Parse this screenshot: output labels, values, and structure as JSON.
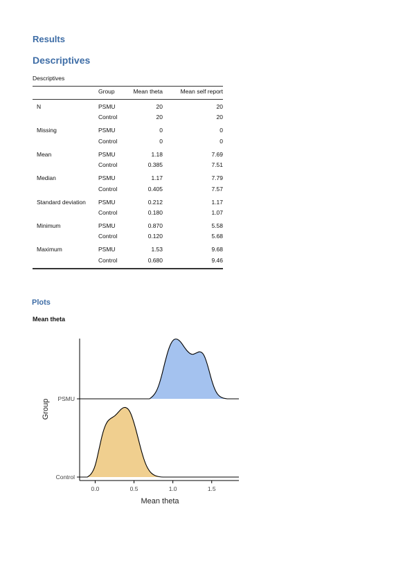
{
  "results_heading": "Results",
  "descriptives_heading": "Descriptives",
  "table": {
    "title": "Descriptives",
    "headers": [
      "",
      "Group",
      "Mean theta",
      "Mean self report"
    ],
    "rows": [
      {
        "stat": "N",
        "values": [
          [
            "PSMU",
            "20",
            "20"
          ],
          [
            "Control",
            "20",
            "20"
          ]
        ]
      },
      {
        "stat": "Missing",
        "values": [
          [
            "PSMU",
            "0",
            "0"
          ],
          [
            "Control",
            "0",
            "0"
          ]
        ]
      },
      {
        "stat": "Mean",
        "values": [
          [
            "PSMU",
            "1.18",
            "7.69"
          ],
          [
            "Control",
            "0.385",
            "7.51"
          ]
        ]
      },
      {
        "stat": "Median",
        "values": [
          [
            "PSMU",
            "1.17",
            "7.79"
          ],
          [
            "Control",
            "0.405",
            "7.57"
          ]
        ]
      },
      {
        "stat": "Standard deviation",
        "values": [
          [
            "PSMU",
            "0.212",
            "1.17"
          ],
          [
            "Control",
            "0.180",
            "1.07"
          ]
        ]
      },
      {
        "stat": "Minimum",
        "values": [
          [
            "PSMU",
            "0.870",
            "5.58"
          ],
          [
            "Control",
            "0.120",
            "5.68"
          ]
        ]
      },
      {
        "stat": "Maximum",
        "values": [
          [
            "PSMU",
            "1.53",
            "9.68"
          ],
          [
            "Control",
            "0.680",
            "9.46"
          ]
        ]
      }
    ]
  },
  "plots_heading": "Plots",
  "plot_title": "Mean theta",
  "chart_data": {
    "type": "area",
    "subtype": "ridgeline-density",
    "xlabel": "Mean theta",
    "ylabel": "Group",
    "xlim": [
      -0.2,
      1.85
    ],
    "x_ticks": [
      "0.0",
      "0.5",
      "1.0",
      "1.5"
    ],
    "x_tick_values": [
      0.0,
      0.5,
      1.0,
      1.5
    ],
    "categories": [
      "PSMU",
      "Control"
    ],
    "series": [
      {
        "name": "PSMU",
        "color": "#a4c2ef",
        "x": [
          0.7,
          0.75,
          0.8,
          0.85,
          0.9,
          0.95,
          1.0,
          1.05,
          1.1,
          1.15,
          1.2,
          1.25,
          1.3,
          1.35,
          1.4,
          1.45,
          1.5,
          1.55,
          1.6,
          1.65,
          1.7
        ],
        "density": [
          0.0,
          0.05,
          0.15,
          0.35,
          0.62,
          0.85,
          0.98,
          1.0,
          0.95,
          0.85,
          0.77,
          0.73,
          0.76,
          0.79,
          0.74,
          0.55,
          0.3,
          0.12,
          0.04,
          0.01,
          0.0
        ]
      },
      {
        "name": "Control",
        "color": "#f0cf8f",
        "x": [
          -0.1,
          -0.05,
          0.0,
          0.05,
          0.1,
          0.15,
          0.2,
          0.25,
          0.3,
          0.35,
          0.4,
          0.45,
          0.5,
          0.55,
          0.6,
          0.65,
          0.7,
          0.75,
          0.8,
          0.85,
          0.9
        ],
        "density": [
          0.0,
          0.04,
          0.15,
          0.4,
          0.65,
          0.79,
          0.84,
          0.87,
          0.93,
          0.99,
          1.0,
          0.94,
          0.78,
          0.57,
          0.35,
          0.18,
          0.08,
          0.03,
          0.01,
          0.0,
          0.0
        ]
      }
    ]
  }
}
